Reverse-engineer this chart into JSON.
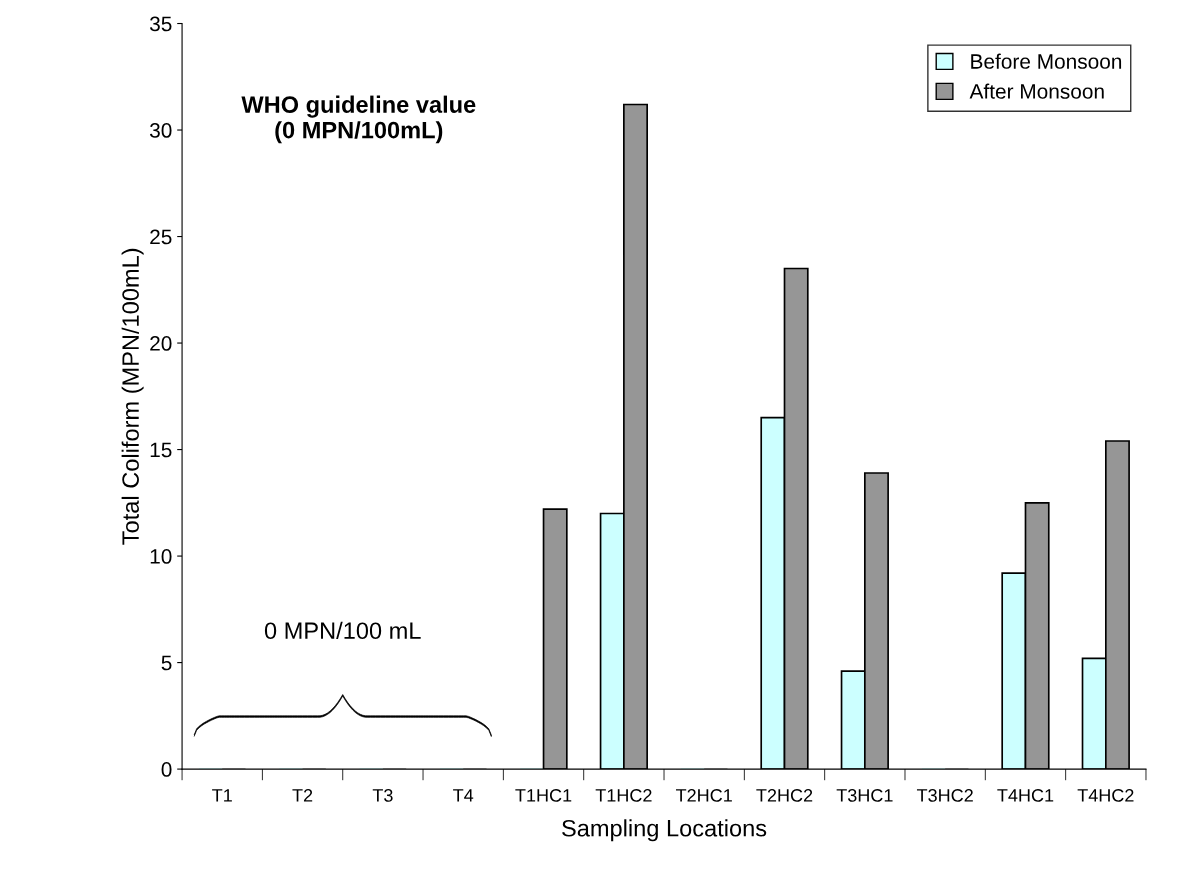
{
  "chart_data": {
    "type": "bar",
    "xlabel": "Sampling Locations",
    "ylabel": "Total Coliform (MPN/100mL)",
    "categories": [
      "T1",
      "T2",
      "T3",
      "T4",
      "T1HC1",
      "T1HC2",
      "T2HC1",
      "T2HC2",
      "T3HC1",
      "T3HC2",
      "T4HC1",
      "T4HC2"
    ],
    "series": [
      {
        "name": "Before Monsoon",
        "color": "#ccffff",
        "values": [
          0,
          0,
          0,
          0,
          0,
          12.0,
          0,
          16.5,
          4.6,
          0,
          9.2,
          5.2
        ]
      },
      {
        "name": "After Monsoon",
        "color": "#969696",
        "values": [
          0,
          0,
          0,
          0,
          12.2,
          31.2,
          0,
          23.5,
          13.9,
          0,
          12.5,
          15.4
        ]
      }
    ],
    "ylim": [
      0,
      35
    ],
    "yticks": [
      0,
      5,
      10,
      15,
      20,
      25,
      30,
      35
    ],
    "annotations": [
      "WHO guideline value\n(0 MPN/100mL)",
      "0 MPN/100 mL"
    ],
    "legend": "top right",
    "grid": false
  }
}
